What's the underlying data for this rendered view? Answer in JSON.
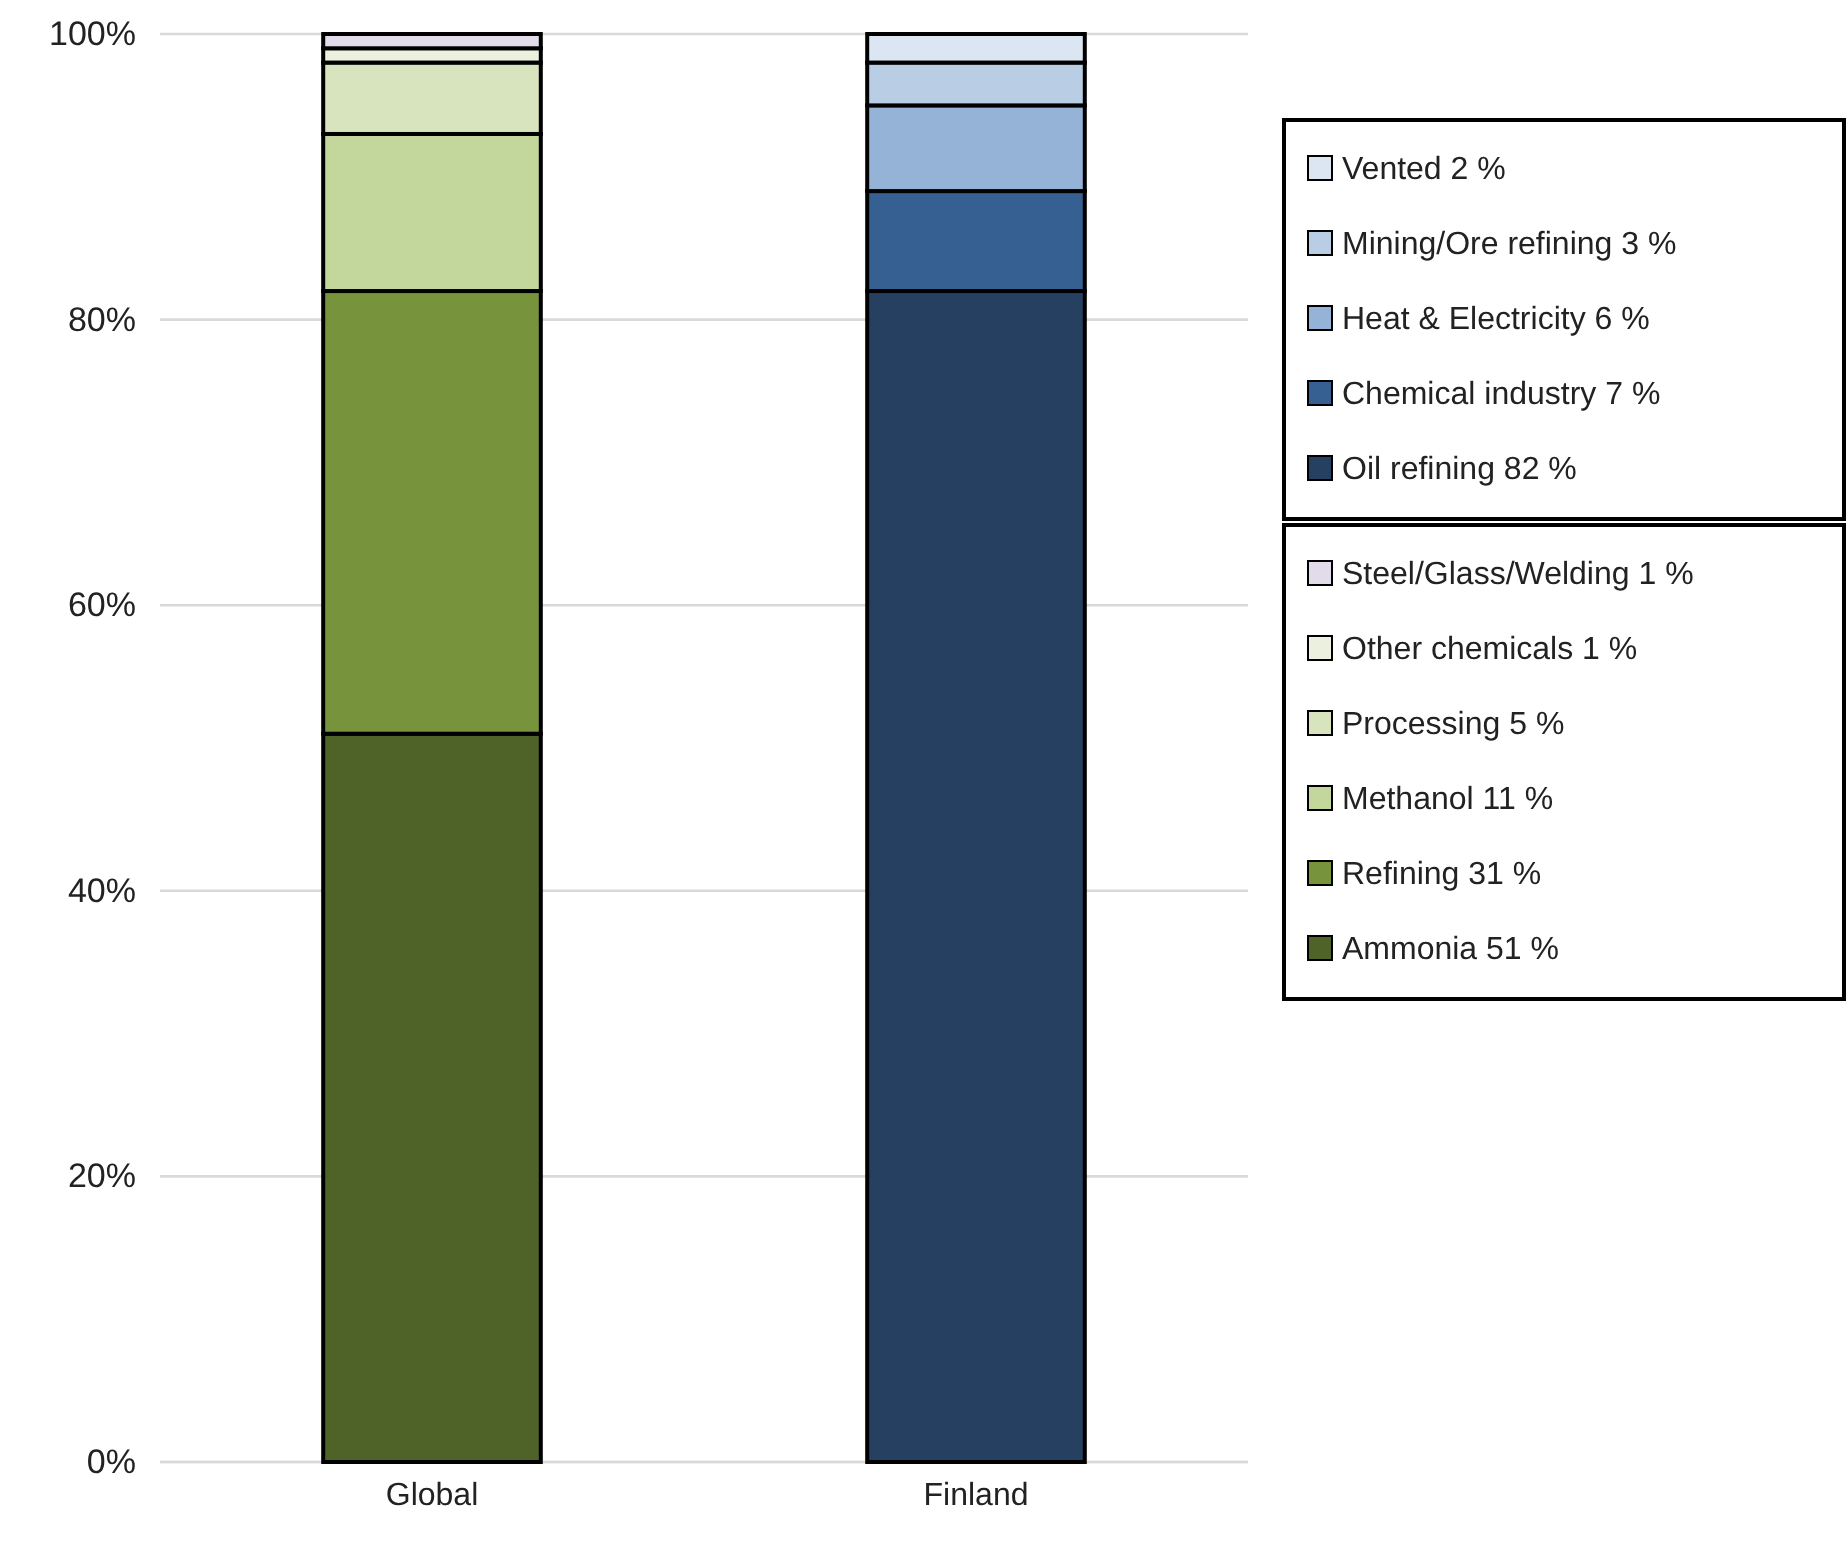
{
  "chart_data": {
    "type": "bar",
    "stacked": true,
    "categories": [
      "Global",
      "Finland"
    ],
    "series": [
      {
        "name": "Ammonia 51 %",
        "color": "#4f6228",
        "values": [
          51,
          null
        ]
      },
      {
        "name": "Refining 31 %",
        "color": "#77933c",
        "values": [
          31,
          null
        ]
      },
      {
        "name": "Methanol 11 %",
        "color": "#c3d69b",
        "values": [
          11,
          null
        ]
      },
      {
        "name": "Processing 5 %",
        "color": "#d7e4bd",
        "values": [
          5,
          null
        ]
      },
      {
        "name": "Other chemicals 1 %",
        "color": "#ebf1de",
        "values": [
          1,
          null
        ]
      },
      {
        "name": "Steel/Glass/Welding 1 %",
        "color": "#e2dcea",
        "values": [
          1,
          null
        ]
      },
      {
        "name": "Oil refining 82 %",
        "color": "#254061",
        "values": [
          null,
          82
        ]
      },
      {
        "name": "Chemical industry 7 %",
        "color": "#376092",
        "values": [
          null,
          7
        ]
      },
      {
        "name": "Heat & Electricity 6 %",
        "color": "#95b3d7",
        "values": [
          null,
          6
        ]
      },
      {
        "name": "Mining/Ore refining 3 %",
        "color": "#b9cde5",
        "values": [
          null,
          3
        ]
      },
      {
        "name": "Vented 2 %",
        "color": "#dce6f2",
        "values": [
          null,
          2
        ]
      }
    ],
    "ylim": [
      0,
      100
    ],
    "yticks": [
      {
        "value": 0,
        "label": "0%"
      },
      {
        "value": 20,
        "label": "20%"
      },
      {
        "value": 40,
        "label": "40%"
      },
      {
        "value": 60,
        "label": "60%"
      },
      {
        "value": 80,
        "label": "80%"
      },
      {
        "value": 100,
        "label": "100%"
      }
    ],
    "grid": "y",
    "legend": "right"
  }
}
